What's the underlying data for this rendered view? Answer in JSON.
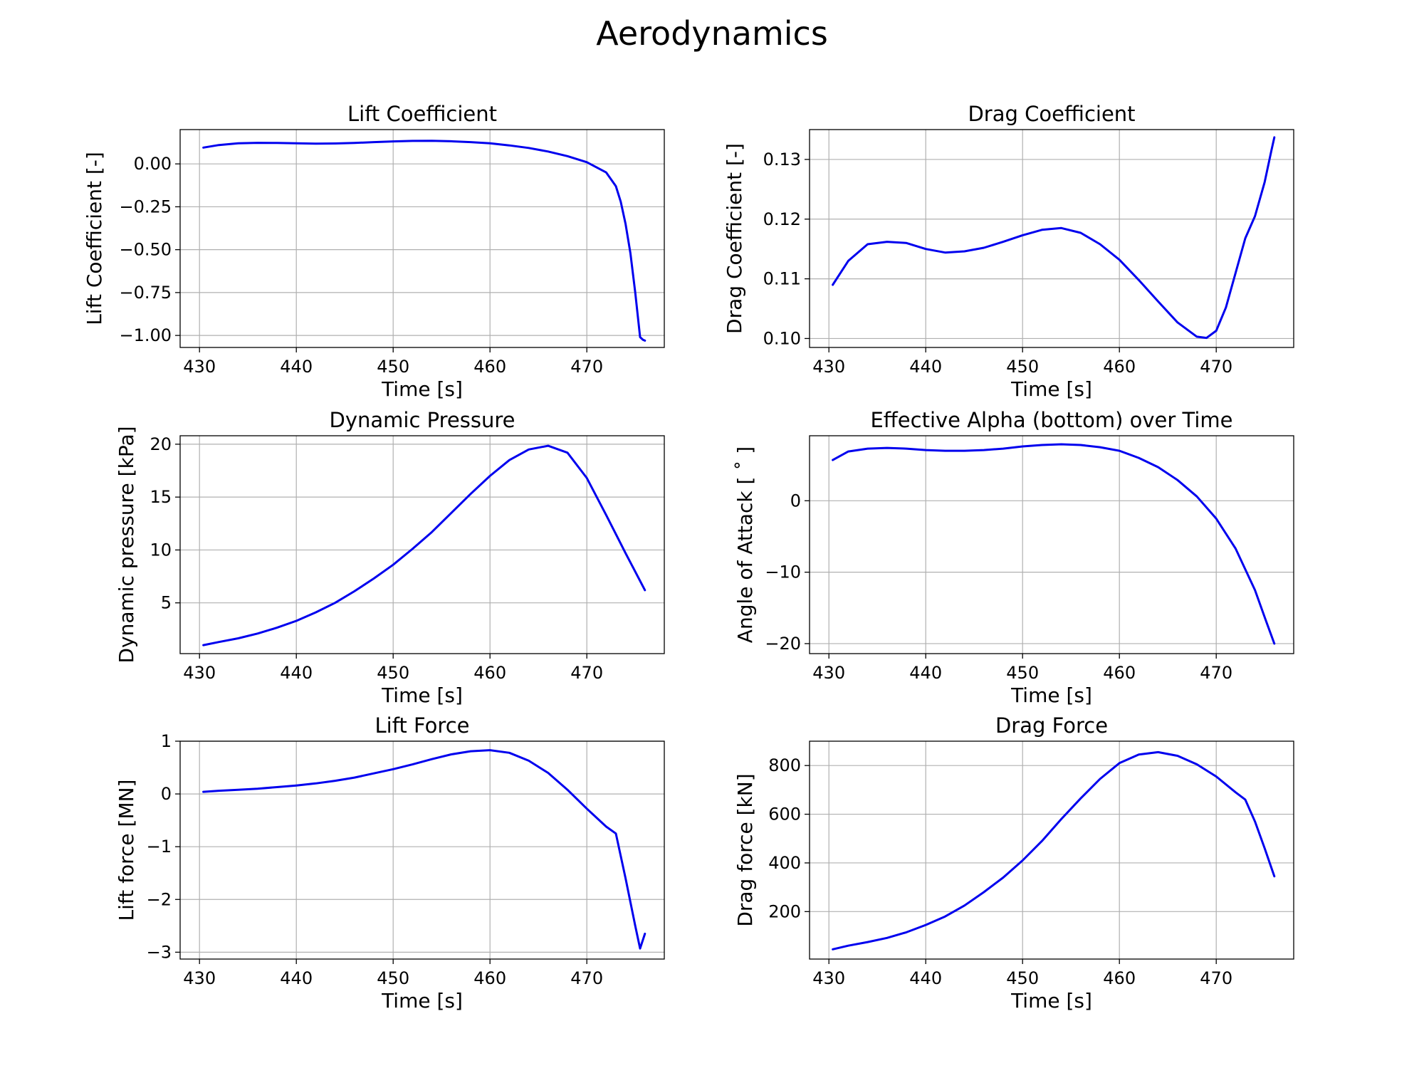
{
  "figure": {
    "title": "Aerodynamics"
  },
  "style": {
    "line_color": "#0000ee",
    "grid_color": "#b0b0b0",
    "axes_color": "#000000"
  },
  "chart_data": [
    {
      "type": "line",
      "title": "Lift Coefficient",
      "xlabel": "Time [s]",
      "ylabel": "Lift Coefficient [-]",
      "xlim": [
        428,
        478
      ],
      "ylim": [
        -1.07,
        0.2
      ],
      "xticks": [
        430,
        440,
        450,
        460,
        470
      ],
      "yticks": [
        0.0,
        -0.25,
        -0.5,
        -0.75,
        -1.0
      ],
      "ytick_labels": [
        "0.00",
        "−0.25",
        "−0.50",
        "−0.75",
        "−1.00"
      ],
      "grid": true,
      "series": [
        {
          "x": [
            430.4,
            432,
            434,
            436,
            438,
            440,
            442,
            444,
            446,
            448,
            450,
            452,
            454,
            456,
            458,
            460,
            462,
            464,
            466,
            468,
            470,
            472,
            473,
            473.5,
            474,
            474.5,
            475,
            475.5,
            475.8,
            476
          ],
          "y": [
            0.095,
            0.11,
            0.12,
            0.123,
            0.122,
            0.12,
            0.118,
            0.119,
            0.122,
            0.127,
            0.131,
            0.134,
            0.135,
            0.132,
            0.127,
            0.12,
            0.108,
            0.093,
            0.072,
            0.045,
            0.01,
            -0.05,
            -0.13,
            -0.22,
            -0.35,
            -0.52,
            -0.75,
            -1.01,
            -1.025,
            -1.03
          ]
        }
      ]
    },
    {
      "type": "line",
      "title": "Drag Coefficient",
      "xlabel": "Time [s]",
      "ylabel": "Drag Coefficient [-]",
      "xlim": [
        428,
        478
      ],
      "ylim": [
        0.0985,
        0.135
      ],
      "xticks": [
        430,
        440,
        450,
        460,
        470
      ],
      "yticks": [
        0.1,
        0.11,
        0.12,
        0.13
      ],
      "ytick_labels": [
        "0.10",
        "0.11",
        "0.12",
        "0.13"
      ],
      "grid": true,
      "series": [
        {
          "x": [
            430.4,
            432,
            434,
            436,
            438,
            440,
            442,
            444,
            446,
            448,
            450,
            452,
            454,
            456,
            458,
            460,
            462,
            464,
            466,
            468,
            469,
            470,
            471,
            472,
            473,
            474,
            475,
            475.7,
            476
          ],
          "y": [
            0.109,
            0.113,
            0.1158,
            0.1162,
            0.116,
            0.115,
            0.1144,
            0.1146,
            0.1152,
            0.1162,
            0.1173,
            0.1182,
            0.1185,
            0.1177,
            0.1158,
            0.1132,
            0.1098,
            0.1062,
            0.1027,
            0.1003,
            0.1001,
            0.1013,
            0.1052,
            0.111,
            0.1168,
            0.1205,
            0.1262,
            0.1315,
            0.1337
          ]
        }
      ]
    },
    {
      "type": "line",
      "title": "Dynamic Pressure",
      "xlabel": "Time [s]",
      "ylabel": "Dynamic pressure [kPa]",
      "xlim": [
        428,
        478
      ],
      "ylim": [
        0.2,
        20.8
      ],
      "xticks": [
        430,
        440,
        450,
        460,
        470
      ],
      "yticks": [
        5,
        10,
        15,
        20
      ],
      "ytick_labels": [
        "5",
        "10",
        "15",
        "20"
      ],
      "grid": true,
      "series": [
        {
          "x": [
            430.4,
            432,
            434,
            436,
            438,
            440,
            442,
            444,
            446,
            448,
            450,
            452,
            454,
            456,
            458,
            460,
            462,
            464,
            466,
            468,
            470,
            472,
            474,
            476
          ],
          "y": [
            1.0,
            1.3,
            1.65,
            2.1,
            2.65,
            3.3,
            4.1,
            5.0,
            6.1,
            7.3,
            8.6,
            10.1,
            11.7,
            13.5,
            15.3,
            17.0,
            18.5,
            19.5,
            19.85,
            19.2,
            16.8,
            13.3,
            9.7,
            6.2
          ]
        }
      ]
    },
    {
      "type": "line",
      "title": "Effective Alpha (bottom) over Time",
      "xlabel": "Time [s]",
      "ylabel": "Angle of Attack [ ˚ ]",
      "xlim": [
        428,
        478
      ],
      "ylim": [
        -21.4,
        9.1
      ],
      "xticks": [
        430,
        440,
        450,
        460,
        470
      ],
      "yticks": [
        0,
        -10,
        -20
      ],
      "ytick_labels": [
        "0",
        "−10",
        "−20"
      ],
      "grid": true,
      "series": [
        {
          "x": [
            430.4,
            432,
            434,
            436,
            438,
            440,
            442,
            444,
            446,
            448,
            450,
            452,
            454,
            456,
            458,
            460,
            462,
            464,
            466,
            468,
            470,
            472,
            474,
            475,
            476
          ],
          "y": [
            5.7,
            6.9,
            7.3,
            7.4,
            7.3,
            7.1,
            7.0,
            7.0,
            7.1,
            7.3,
            7.6,
            7.8,
            7.9,
            7.8,
            7.5,
            7.0,
            6.0,
            4.7,
            2.9,
            0.6,
            -2.5,
            -6.7,
            -12.5,
            -16.3,
            -20.0
          ]
        }
      ]
    },
    {
      "type": "line",
      "title": "Lift Force",
      "xlabel": "Time [s]",
      "ylabel": "Lift force [MN]",
      "xlim": [
        428,
        478
      ],
      "ylim": [
        -3.13,
        1.0
      ],
      "xticks": [
        430,
        440,
        450,
        460,
        470
      ],
      "yticks": [
        1,
        0,
        -1,
        -2,
        -3
      ],
      "ytick_labels": [
        "1",
        "0",
        "−1",
        "−2",
        "−3"
      ],
      "grid": true,
      "series": [
        {
          "x": [
            430.4,
            432,
            434,
            436,
            438,
            440,
            442,
            444,
            446,
            448,
            450,
            452,
            454,
            456,
            458,
            460,
            462,
            464,
            466,
            468,
            470,
            472,
            473,
            474,
            475,
            475.5,
            476
          ],
          "y": [
            0.04,
            0.06,
            0.08,
            0.1,
            0.13,
            0.16,
            0.2,
            0.25,
            0.31,
            0.39,
            0.47,
            0.56,
            0.66,
            0.75,
            0.81,
            0.83,
            0.78,
            0.63,
            0.4,
            0.08,
            -0.28,
            -0.62,
            -0.75,
            -1.6,
            -2.5,
            -2.93,
            -2.65
          ]
        }
      ]
    },
    {
      "type": "line",
      "title": "Drag Force",
      "xlabel": "Time [s]",
      "ylabel": "Drag force [kN]",
      "xlim": [
        428,
        478
      ],
      "ylim": [
        5,
        900
      ],
      "xticks": [
        430,
        440,
        450,
        460,
        470
      ],
      "yticks": [
        200,
        400,
        600,
        800
      ],
      "ytick_labels": [
        "200",
        "400",
        "600",
        "800"
      ],
      "grid": true,
      "series": [
        {
          "x": [
            430.4,
            432,
            434,
            436,
            438,
            440,
            442,
            444,
            446,
            448,
            450,
            452,
            454,
            456,
            458,
            460,
            462,
            464,
            466,
            468,
            470,
            472,
            473,
            474,
            475,
            476
          ],
          "y": [
            45,
            60,
            75,
            92,
            115,
            145,
            180,
            225,
            280,
            340,
            410,
            490,
            580,
            665,
            745,
            810,
            845,
            855,
            840,
            805,
            755,
            690,
            660,
            570,
            460,
            345
          ]
        }
      ]
    }
  ]
}
